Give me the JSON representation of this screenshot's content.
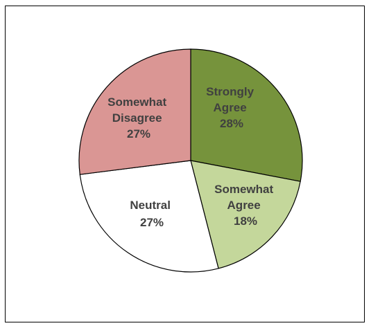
{
  "chart_data": {
    "type": "pie",
    "slices": [
      {
        "line1": "Strongly",
        "line2": "Agree",
        "pct": "28%",
        "value": 28,
        "color": "#76933c"
      },
      {
        "line1": "Somewhat",
        "line2": "Agree",
        "pct": "18%",
        "value": 18,
        "color": "#c4d79b"
      },
      {
        "line1": "Neutral",
        "line2": "",
        "pct": "27%",
        "value": 27,
        "color": "#ffffff"
      },
      {
        "line1": "Somewhat",
        "line2": "Disagree",
        "pct": "27%",
        "value": 27,
        "color": "#da9694"
      }
    ],
    "start_angle": "top",
    "direction": "clockwise"
  }
}
